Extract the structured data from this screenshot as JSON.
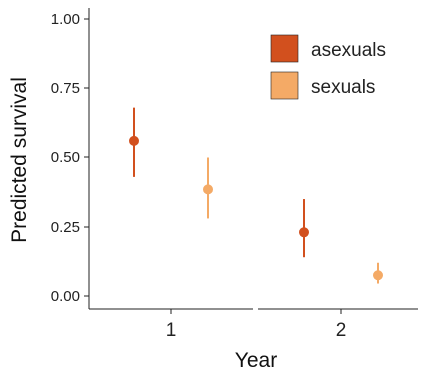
{
  "chart_data": {
    "type": "scatter",
    "xlabel": "Year",
    "ylabel": "Predicted survival",
    "categories": [
      "1",
      "2"
    ],
    "ylim": [
      0,
      1.05
    ],
    "yticks": [
      "0.00",
      "0.25",
      "0.50",
      "0.75",
      "1.00"
    ],
    "legend_position": "top-right",
    "series": [
      {
        "name": "asexuals",
        "color": "#d2501e",
        "values": [
          0.56,
          0.23
        ],
        "lower": [
          0.43,
          0.14
        ],
        "upper": [
          0.68,
          0.35
        ]
      },
      {
        "name": "sexuals",
        "color": "#f4aa66",
        "values": [
          0.385,
          0.075
        ],
        "lower": [
          0.28,
          0.045
        ],
        "upper": [
          0.5,
          0.12
        ]
      }
    ]
  }
}
